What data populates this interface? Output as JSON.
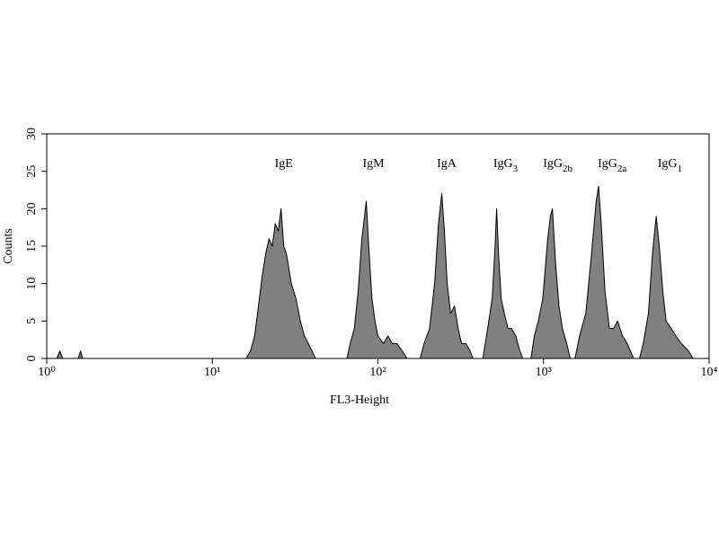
{
  "chart_data": {
    "type": "area",
    "xlabel": "FL3-Height",
    "ylabel": "Counts",
    "log_x": true,
    "xlim": [
      1,
      10000
    ],
    "xticks": [
      {
        "value": 1,
        "label": "10⁰"
      },
      {
        "value": 10,
        "label": "10¹"
      },
      {
        "value": 100,
        "label": "10²"
      },
      {
        "value": 1000,
        "label": "10³"
      },
      {
        "value": 10000,
        "label": "10⁴"
      }
    ],
    "ylim": [
      0,
      30
    ],
    "yticks": [
      0,
      5,
      10,
      15,
      20,
      25,
      30
    ],
    "x": [
      1,
      1.15,
      1.2,
      1.25,
      1.55,
      1.6,
      1.65,
      16,
      17,
      18,
      19,
      20,
      21,
      22,
      23,
      24,
      25,
      26,
      27,
      28,
      30,
      32,
      34,
      36,
      38,
      40,
      42,
      65,
      68,
      72,
      76,
      80,
      83,
      85,
      88,
      92,
      96,
      100,
      108,
      115,
      122,
      130,
      140,
      150,
      180,
      190,
      205,
      220,
      232,
      243,
      252,
      262,
      275,
      290,
      305,
      320,
      340,
      360,
      375,
      430,
      460,
      490,
      510,
      521,
      535,
      555,
      580,
      610,
      640,
      680,
      720,
      750,
      840,
      880,
      930,
      990,
      1060,
      1100,
      1132,
      1180,
      1240,
      1300,
      1380,
      1450,
      1550,
      1650,
      1800,
      1950,
      2080,
      2150,
      2230,
      2350,
      2500,
      2650,
      2800,
      3000,
      3200,
      3500,
      3800,
      4000,
      4300,
      4550,
      4790,
      5000,
      5250,
      5500,
      5900,
      6300,
      6800,
      7500,
      8000,
      10000
    ],
    "series": [
      {
        "color": "#808080",
        "values": [
          0,
          0,
          1,
          0,
          0,
          1,
          0,
          0,
          1,
          3,
          7,
          11,
          14,
          16,
          15,
          18,
          17,
          20,
          15,
          14,
          10,
          8,
          5,
          3,
          2,
          1,
          0,
          0,
          2,
          4,
          9,
          16,
          19,
          21,
          15,
          8,
          5,
          3,
          2,
          3,
          2,
          2,
          1,
          0,
          0,
          2,
          4,
          10,
          18,
          22,
          17,
          10,
          6,
          7,
          4,
          2,
          2,
          1,
          0,
          0,
          4,
          8,
          15,
          20,
          14,
          8,
          6,
          4,
          4,
          3,
          1,
          0,
          0,
          3,
          5,
          8,
          16,
          19,
          20,
          13,
          7,
          4,
          2,
          0,
          0,
          3,
          6,
          14,
          21,
          23,
          18,
          9,
          4,
          4,
          5,
          3,
          2,
          0,
          0,
          2,
          6,
          14,
          19,
          15,
          9,
          5,
          4,
          3,
          2,
          1,
          0,
          0
        ]
      }
    ],
    "annotations": [
      {
        "text": "IgE",
        "x": 27
      },
      {
        "text": "IgM",
        "x": 94
      },
      {
        "text": "IgA",
        "x": 260
      },
      {
        "text": "IgG",
        "sub": "3",
        "x": 590
      },
      {
        "text": "IgG",
        "sub": "2b",
        "x": 1220
      },
      {
        "text": "IgG",
        "sub": "2a",
        "x": 2600
      },
      {
        "text": "IgG",
        "sub": "1",
        "x": 5800
      }
    ]
  }
}
